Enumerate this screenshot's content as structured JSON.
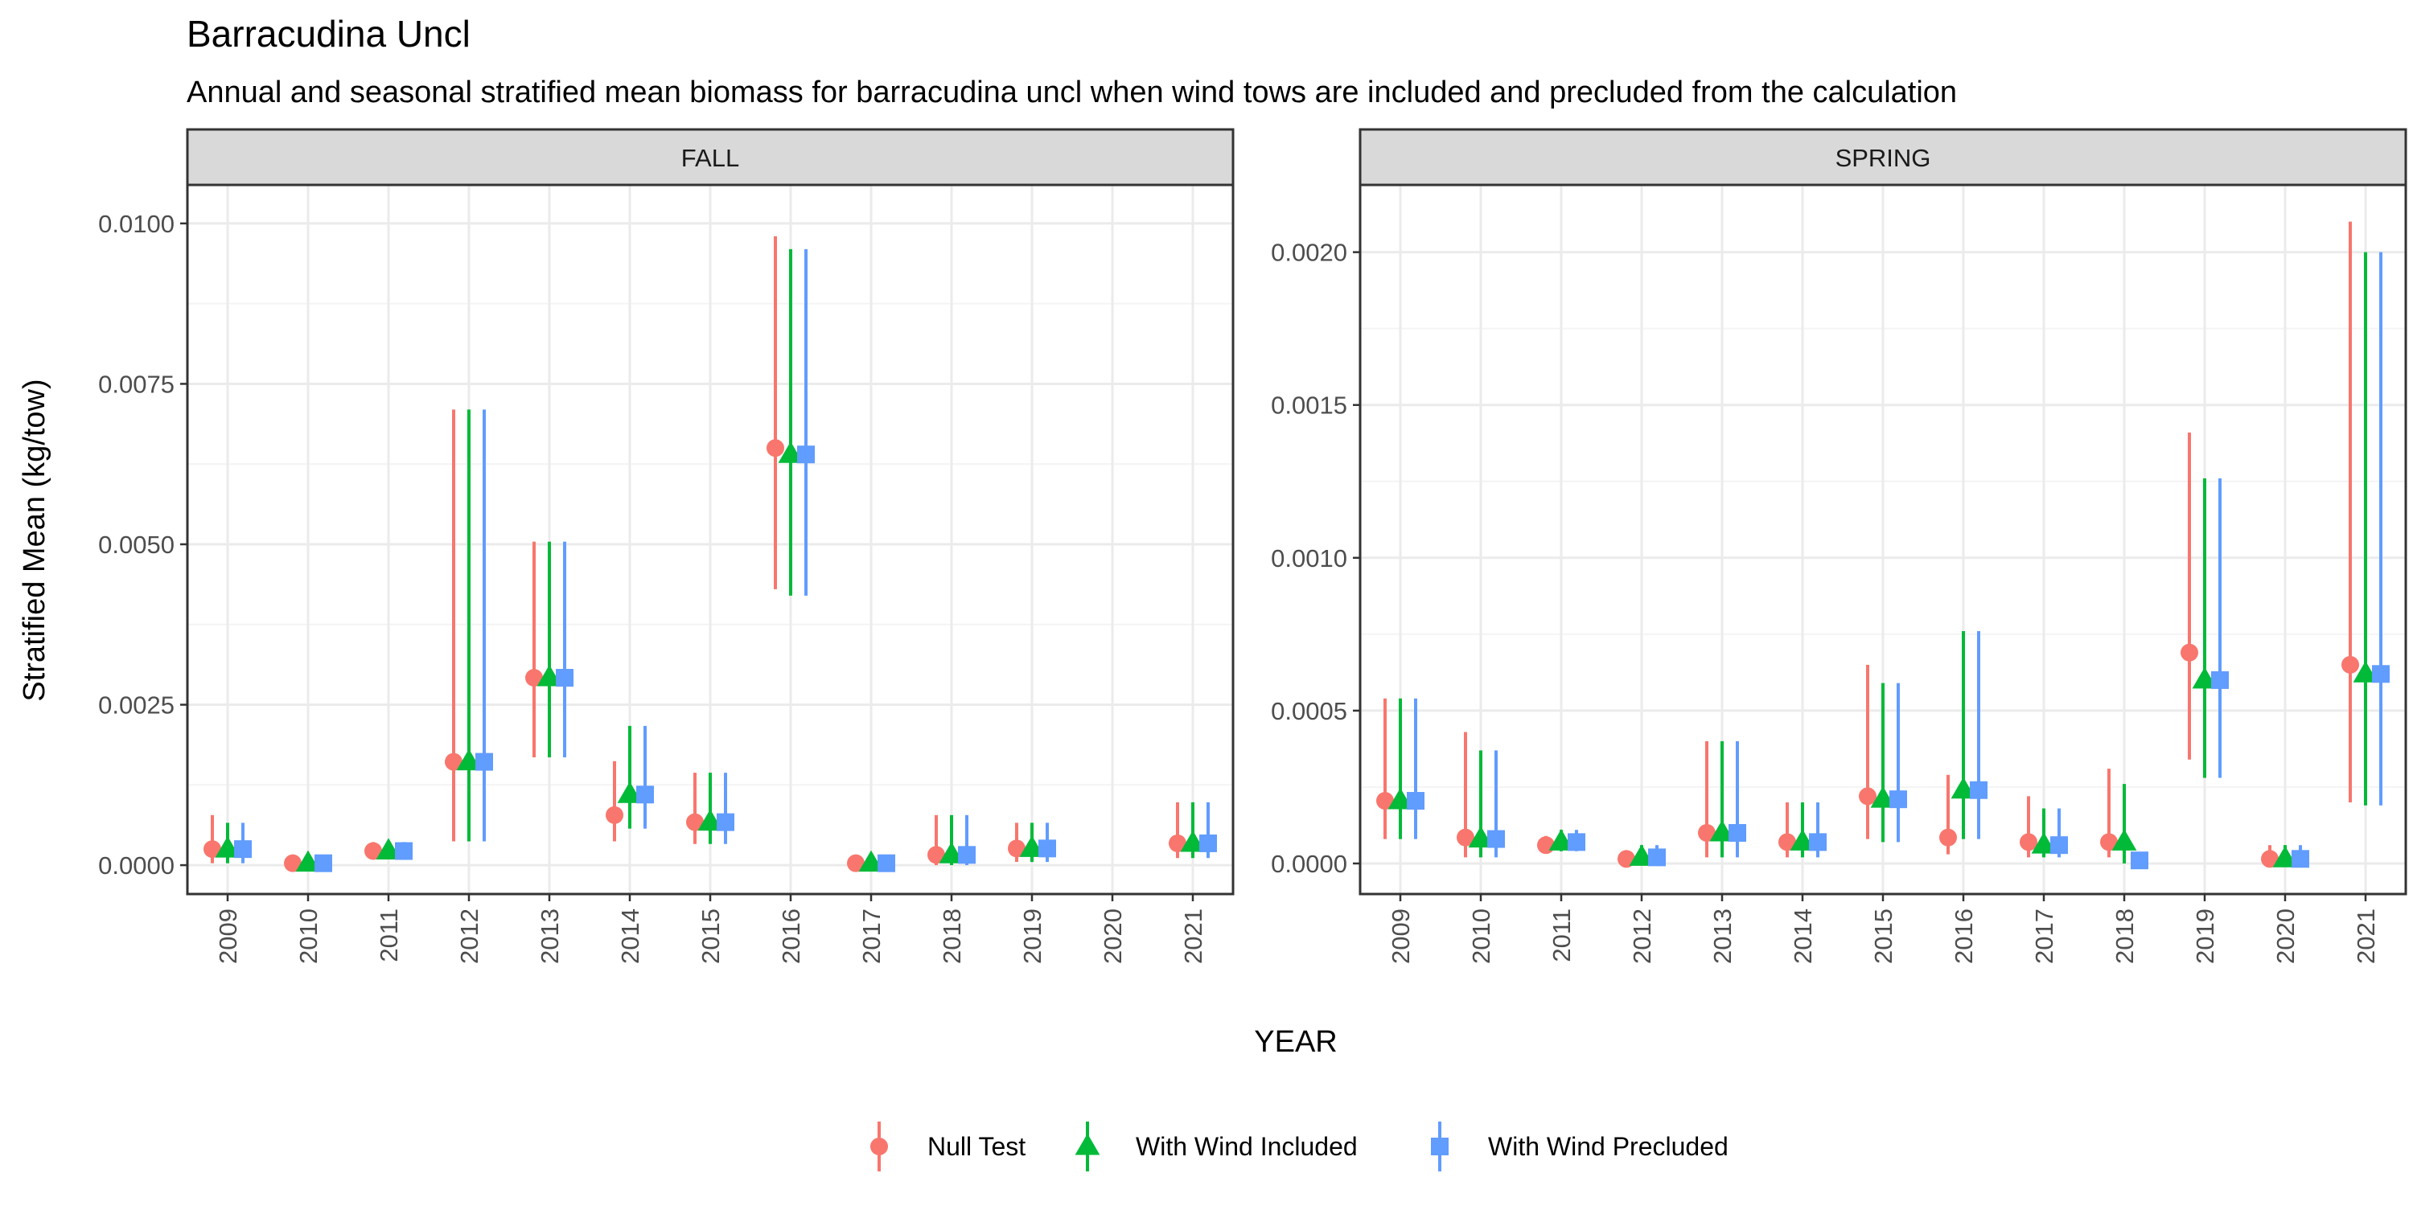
{
  "title": "Barracudina Uncl",
  "subtitle": "Annual and seasonal stratified mean biomass for barracudina uncl when wind tows are included and precluded from the calculation",
  "colors": {
    "null_test": "#F8766D",
    "with_wind_included": "#00BA38",
    "with_wind_precluded": "#619CFF",
    "strip_bg": "#D9D9D9",
    "grid_major": "#EBEBEB",
    "grid_minor": "#F4F4F4",
    "panel_border": "#333333"
  },
  "chart_data": {
    "type": "scatter",
    "xlabel": "YEAR",
    "ylabel": "Stratified Mean (kg/tow)",
    "legend": {
      "position": "bottom",
      "entries": [
        {
          "key": "null_test",
          "label": "Null Test",
          "shape": "circle"
        },
        {
          "key": "with_wind_included",
          "label": "With Wind Included",
          "shape": "triangle"
        },
        {
          "key": "with_wind_precluded",
          "label": "With Wind Precluded",
          "shape": "square"
        }
      ]
    },
    "grid": true,
    "panels": [
      {
        "strip": "FALL",
        "ylim": [
          -0.00045,
          0.0106
        ],
        "yticks": [
          0.0,
          0.0025,
          0.005,
          0.0075,
          0.01
        ],
        "ytick_labels": [
          "0.0000",
          "0.0025",
          "0.0050",
          "0.0075",
          "0.0100"
        ],
        "categories": [
          "2009",
          "2010",
          "2011",
          "2012",
          "2013",
          "2014",
          "2015",
          "2016",
          "2017",
          "2018",
          "2019",
          "2020",
          "2021"
        ],
        "series": [
          {
            "key": "null_test",
            "y": [
              0.00025,
              3e-05,
              0.00022,
              0.00161,
              0.00292,
              0.00078,
              0.00067,
              0.0065,
              3e-05,
              0.00016,
              0.00026,
              null,
              0.00034
            ],
            "lo": [
              3e-05,
              0.0,
              0.00012,
              0.00037,
              0.00168,
              0.00037,
              0.00033,
              0.0043,
              0.0,
              0.0,
              5e-05,
              null,
              0.00011
            ],
            "hi": [
              0.00078,
              8e-05,
              0.00036,
              0.0071,
              0.00504,
              0.00162,
              0.00144,
              0.0098,
              9e-05,
              0.00078,
              0.00066,
              null,
              0.00098
            ]
          },
          {
            "key": "with_wind_included",
            "y": [
              0.00025,
              3e-05,
              0.00022,
              0.00161,
              0.00292,
              0.0011,
              0.00067,
              0.0064,
              3e-05,
              0.00016,
              0.00026,
              null,
              0.00034
            ],
            "lo": [
              3e-05,
              0.0,
              0.00012,
              0.00037,
              0.00168,
              0.00057,
              0.00033,
              0.0042,
              0.0,
              0.0,
              5e-05,
              null,
              0.00011
            ],
            "hi": [
              0.00066,
              8e-05,
              0.00036,
              0.0071,
              0.00504,
              0.00217,
              0.00144,
              0.0096,
              9e-05,
              0.00078,
              0.00066,
              null,
              0.00098
            ]
          },
          {
            "key": "with_wind_precluded",
            "y": [
              0.00025,
              3e-05,
              0.00022,
              0.00161,
              0.00292,
              0.0011,
              0.00067,
              0.0064,
              3e-05,
              0.00016,
              0.00026,
              null,
              0.00034
            ],
            "lo": [
              3e-05,
              0.0,
              0.00012,
              0.00037,
              0.00168,
              0.00057,
              0.00033,
              0.0042,
              0.0,
              0.0,
              5e-05,
              null,
              0.00011
            ],
            "hi": [
              0.00066,
              8e-05,
              0.00036,
              0.0071,
              0.00504,
              0.00217,
              0.00144,
              0.0096,
              9e-05,
              0.00078,
              0.00066,
              null,
              0.00098
            ]
          }
        ]
      },
      {
        "strip": "SPRING",
        "ylim": [
          -0.0001,
          0.00222
        ],
        "yticks": [
          0.0,
          0.0005,
          0.001,
          0.0015,
          0.002
        ],
        "ytick_labels": [
          "0.0000",
          "0.0005",
          "0.0010",
          "0.0015",
          "0.0020"
        ],
        "categories": [
          "2009",
          "2010",
          "2011",
          "2012",
          "2013",
          "2014",
          "2015",
          "2016",
          "2017",
          "2018",
          "2019",
          "2020",
          "2021"
        ],
        "series": [
          {
            "key": "null_test",
            "y": [
              0.000205,
              8.5e-05,
              6e-05,
              1.5e-05,
              0.0001,
              7e-05,
              0.00022,
              8.5e-05,
              7e-05,
              7e-05,
              0.00069,
              1.5e-05,
              0.00065
            ],
            "lo": [
              8e-05,
              2e-05,
              4e-05,
              0.0,
              2e-05,
              2e-05,
              8e-05,
              3e-05,
              2e-05,
              2e-05,
              0.00034,
              0.0,
              0.0002
            ],
            "hi": [
              0.00054,
              0.00043,
              9e-05,
              3e-05,
              0.0004,
              0.0002,
              0.00065,
              0.00029,
              0.00022,
              0.00031,
              0.00141,
              6e-05,
              0.0021
            ]
          },
          {
            "key": "with_wind_included",
            "y": [
              0.000205,
              8e-05,
              7e-05,
              2e-05,
              0.0001,
              7e-05,
              0.00021,
              0.00024,
              6e-05,
              7e-05,
              0.0006,
              1.5e-05,
              0.00062
            ],
            "lo": [
              8e-05,
              2e-05,
              4e-05,
              0.0,
              2e-05,
              2e-05,
              7e-05,
              8e-05,
              2e-05,
              0.0,
              0.00028,
              0.0,
              0.00019
            ],
            "hi": [
              0.00054,
              0.00037,
              0.00011,
              6e-05,
              0.0004,
              0.0002,
              0.00059,
              0.00076,
              0.00018,
              0.00026,
              0.00126,
              6e-05,
              0.002
            ]
          },
          {
            "key": "with_wind_precluded",
            "y": [
              0.000205,
              8e-05,
              7e-05,
              2e-05,
              0.0001,
              7e-05,
              0.00021,
              0.00024,
              6e-05,
              1e-05,
              0.0006,
              1.5e-05,
              0.00062
            ],
            "lo": [
              8e-05,
              2e-05,
              4e-05,
              0.0,
              2e-05,
              2e-05,
              7e-05,
              8e-05,
              2e-05,
              0.0,
              0.00028,
              0.0,
              0.00019
            ],
            "hi": [
              0.00054,
              0.00037,
              0.00011,
              6e-05,
              0.0004,
              0.0002,
              0.00059,
              0.00076,
              0.00018,
              3e-05,
              0.00126,
              6e-05,
              0.002
            ]
          }
        ]
      }
    ]
  }
}
